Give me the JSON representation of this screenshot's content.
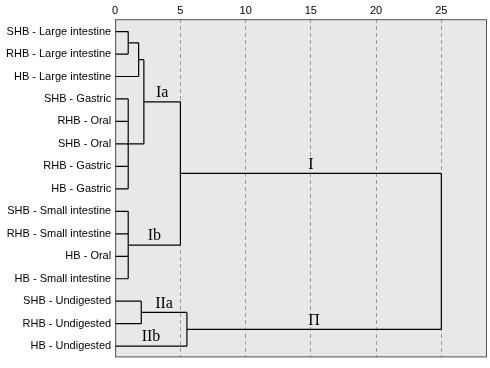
{
  "chart_data": {
    "type": "dendrogram",
    "xlim": [
      0,
      28.5
    ],
    "xticks": [
      0,
      5,
      10,
      15,
      20,
      25
    ],
    "grid": true,
    "color": "#000000",
    "tree": {
      "height": 25,
      "children": [
        {
          "height": 5,
          "label": "I",
          "children": [
            {
              "height": 2.2,
              "label": "Ia",
              "children": [
                {
                  "height": 1.8,
                  "children": [
                    {
                      "height": 1,
                      "children": [
                        "SHB - Large intestine",
                        "RHB - Large intestine"
                      ]
                    },
                    "HB - Large intestine"
                  ]
                },
                {
                  "height": 1,
                  "children": [
                    "SHB - Gastric",
                    "RHB - Oral",
                    "SHB - Oral",
                    "RHB - Gastric",
                    "HB - Gastric"
                  ]
                }
              ]
            },
            {
              "height": 1,
              "label": "Ib",
              "children": [
                "SHB - Small intestine",
                "RHB - Small intestine",
                "HB - Oral",
                "HB - Small intestine"
              ]
            }
          ]
        },
        {
          "height": 5.5,
          "label": "Π",
          "children": [
            {
              "height": 2,
              "label": "IIa",
              "children": [
                "SHB - Undigested",
                "RHB - Undigested"
              ]
            },
            {
              "name": "HB - Undigested",
              "label": "IIb"
            }
          ]
        }
      ]
    }
  }
}
